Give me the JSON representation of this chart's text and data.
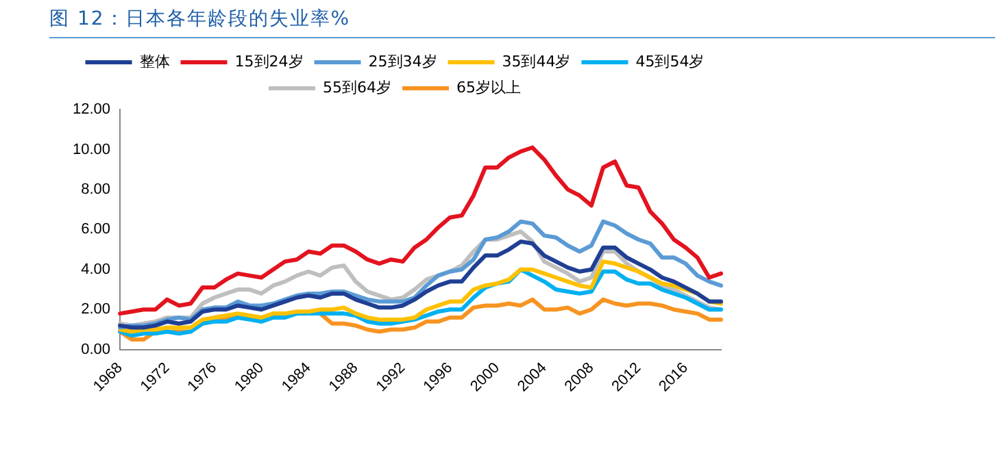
{
  "chart_data": {
    "type": "line",
    "title": "图 12：日本各年龄段的失业率%",
    "categories": [
      "1968",
      null,
      null,
      null,
      "1972",
      null,
      null,
      null,
      "1976",
      null,
      null,
      null,
      "1980",
      null,
      null,
      null,
      "1984",
      null,
      null,
      null,
      "1988",
      null,
      null,
      null,
      "1992",
      null,
      null,
      null,
      "1996",
      null,
      null,
      null,
      "2000",
      null,
      null,
      null,
      "2004",
      null,
      null,
      null,
      "2008",
      null,
      null,
      null,
      "2012",
      null,
      null,
      null,
      "2016",
      null,
      null,
      null
    ],
    "series": [
      {
        "name": "整体",
        "color": "#1f3f94",
        "values": [
          1.2,
          1.1,
          1.1,
          1.2,
          1.4,
          1.3,
          1.4,
          1.9,
          2.0,
          2.0,
          2.2,
          2.1,
          2.0,
          2.2,
          2.4,
          2.6,
          2.7,
          2.6,
          2.8,
          2.8,
          2.5,
          2.3,
          2.1,
          2.1,
          2.2,
          2.5,
          2.9,
          3.2,
          3.4,
          3.4,
          4.1,
          4.7,
          4.7,
          5.0,
          5.4,
          5.3,
          4.7,
          4.4,
          4.1,
          3.9,
          4.0,
          5.1,
          5.1,
          4.6,
          4.3,
          4.0,
          3.6,
          3.4,
          3.1,
          2.8,
          2.4,
          2.4
        ]
      },
      {
        "name": "15到24岁",
        "color": "#e3131f",
        "values": [
          1.8,
          1.9,
          2.0,
          2.0,
          2.5,
          2.2,
          2.3,
          3.1,
          3.1,
          3.5,
          3.8,
          3.7,
          3.6,
          4.0,
          4.4,
          4.5,
          4.9,
          4.8,
          5.2,
          5.2,
          4.9,
          4.5,
          4.3,
          4.5,
          4.4,
          5.1,
          5.5,
          6.1,
          6.6,
          6.7,
          7.7,
          9.1,
          9.1,
          9.6,
          9.9,
          10.1,
          9.5,
          8.7,
          8.0,
          7.7,
          7.2,
          9.1,
          9.4,
          8.2,
          8.1,
          6.9,
          6.3,
          5.5,
          5.1,
          4.6,
          3.6,
          3.8
        ]
      },
      {
        "name": "25到34岁",
        "color": "#5b9bd5",
        "values": [
          1.1,
          1.2,
          1.2,
          1.3,
          1.5,
          1.6,
          1.5,
          2.0,
          2.1,
          2.1,
          2.4,
          2.2,
          2.2,
          2.3,
          2.5,
          2.7,
          2.8,
          2.8,
          2.9,
          2.9,
          2.7,
          2.5,
          2.4,
          2.4,
          2.4,
          2.6,
          3.2,
          3.7,
          3.9,
          4.0,
          4.5,
          5.5,
          5.6,
          5.9,
          6.4,
          6.3,
          5.7,
          5.6,
          5.2,
          4.9,
          5.2,
          6.4,
          6.2,
          5.8,
          5.5,
          5.3,
          4.6,
          4.6,
          4.3,
          3.7,
          3.4,
          3.2
        ]
      },
      {
        "name": "35到44岁",
        "color": "#ffc000",
        "values": [
          1.0,
          0.9,
          1.0,
          1.0,
          1.1,
          1.1,
          1.1,
          1.5,
          1.6,
          1.7,
          1.8,
          1.7,
          1.6,
          1.8,
          1.8,
          1.9,
          1.9,
          2.0,
          2.0,
          2.1,
          1.8,
          1.6,
          1.5,
          1.5,
          1.5,
          1.6,
          2.0,
          2.2,
          2.4,
          2.4,
          3.0,
          3.2,
          3.3,
          3.5,
          4.0,
          4.0,
          3.8,
          3.6,
          3.4,
          3.2,
          3.1,
          4.4,
          4.3,
          4.1,
          3.9,
          3.6,
          3.3,
          3.2,
          3.0,
          2.8,
          2.4,
          2.3
        ]
      },
      {
        "name": "45到54岁",
        "color": "#00b0f0",
        "values": [
          0.9,
          0.7,
          0.8,
          0.8,
          0.9,
          0.8,
          0.9,
          1.3,
          1.4,
          1.4,
          1.6,
          1.5,
          1.4,
          1.6,
          1.6,
          1.8,
          1.8,
          1.8,
          1.8,
          1.8,
          1.7,
          1.4,
          1.3,
          1.3,
          1.4,
          1.5,
          1.7,
          1.9,
          2.0,
          2.0,
          2.6,
          3.1,
          3.3,
          3.4,
          4.0,
          3.7,
          3.4,
          3.0,
          2.9,
          2.8,
          2.9,
          3.9,
          3.9,
          3.5,
          3.3,
          3.3,
          3.0,
          2.8,
          2.6,
          2.3,
          2.0,
          2.0
        ]
      },
      {
        "name": "55到64岁",
        "color": "#bfbfbf",
        "values": [
          1.3,
          1.2,
          1.3,
          1.4,
          1.6,
          1.6,
          1.6,
          2.3,
          2.6,
          2.8,
          3.0,
          3.0,
          2.8,
          3.2,
          3.4,
          3.7,
          3.9,
          3.7,
          4.1,
          4.2,
          3.4,
          2.9,
          2.7,
          2.5,
          2.6,
          3.0,
          3.5,
          3.7,
          3.9,
          4.2,
          4.9,
          5.5,
          5.5,
          5.7,
          5.9,
          5.4,
          4.4,
          4.1,
          3.8,
          3.4,
          3.6,
          4.9,
          4.9,
          4.3,
          3.9,
          3.6,
          3.2,
          3.0,
          2.7,
          2.4,
          2.1,
          2.0
        ]
      },
      {
        "name": "65岁以上",
        "color": "#f79421",
        "values": [
          0.9,
          0.5,
          0.5,
          0.9,
          0.9,
          0.9,
          0.9,
          1.3,
          1.6,
          1.6,
          1.6,
          1.6,
          1.4,
          1.8,
          1.8,
          1.8,
          1.8,
          1.8,
          1.3,
          1.3,
          1.2,
          1.0,
          0.9,
          1.0,
          1.0,
          1.1,
          1.4,
          1.4,
          1.6,
          1.6,
          2.1,
          2.2,
          2.2,
          2.3,
          2.2,
          2.5,
          2.0,
          2.0,
          2.1,
          1.8,
          2.0,
          2.5,
          2.3,
          2.2,
          2.3,
          2.3,
          2.2,
          2.0,
          1.9,
          1.8,
          1.5,
          1.5
        ]
      }
    ],
    "ylim": [
      0,
      12
    ],
    "yticks": [
      {
        "value": 0,
        "label": "0.00"
      },
      {
        "value": 2,
        "label": "2.00"
      },
      {
        "value": 4,
        "label": "4.00"
      },
      {
        "value": 6,
        "label": "6.00"
      },
      {
        "value": 8,
        "label": "8.00"
      },
      {
        "value": 10,
        "label": "10.00"
      },
      {
        "value": 12,
        "label": "12.00"
      }
    ],
    "grid": false,
    "legend": "top",
    "marker": "none",
    "line_style": "solid"
  }
}
